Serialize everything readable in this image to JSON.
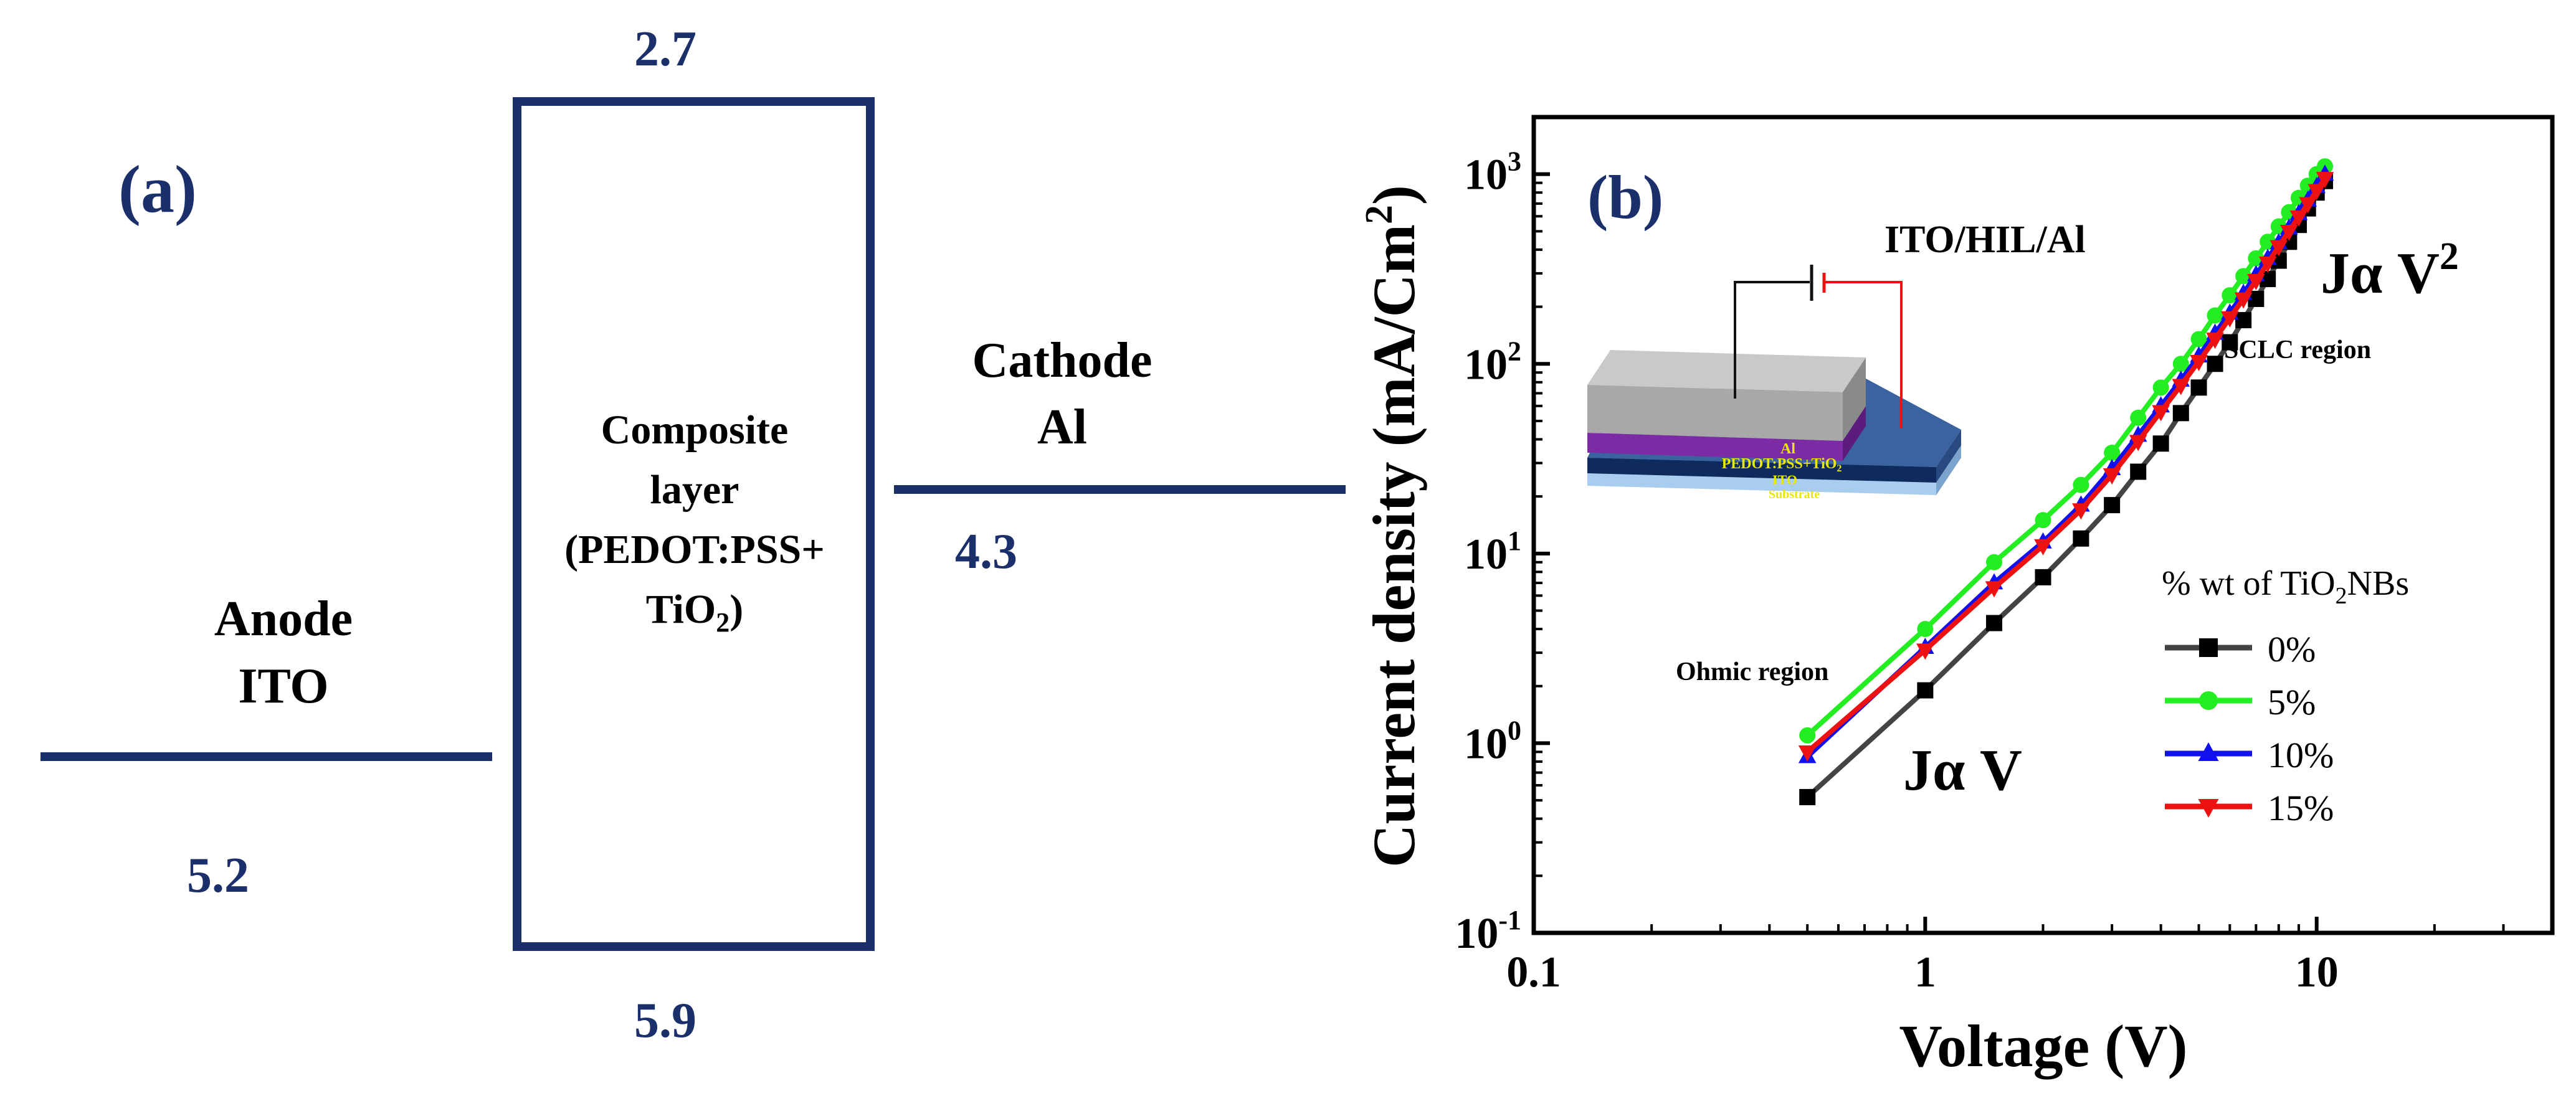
{
  "panel_a": {
    "label": "(a)",
    "anode": {
      "line1": "Anode",
      "line2": "ITO",
      "level": "5.2"
    },
    "composite": {
      "line1": "Composite",
      "line2": "layer",
      "line3": "(PEDOT:PSS+",
      "line4_main": "TiO",
      "line4_sub": "2",
      "line4_end": ")",
      "top_level": "2.7",
      "bottom_level": "5.9"
    },
    "cathode": {
      "line1": "Cathode",
      "line2": "Al",
      "level": "4.3"
    },
    "colors": {
      "level_color": "#1b2f6b"
    }
  },
  "chart_data": {
    "type": "line",
    "panel_label": "(b)",
    "xscale": "log",
    "yscale": "log",
    "xlabel": "Voltage (V)",
    "ylabel_main": "Current density (mA/Cm",
    "ylabel_sup": "2",
    "ylabel_end": ")",
    "xlim": [
      0.1,
      40
    ],
    "ylim": [
      0.1,
      2000
    ],
    "xticks": [
      {
        "value": 0.1,
        "label": "0.1"
      },
      {
        "value": 1,
        "label": "1"
      },
      {
        "value": 10,
        "label": "10"
      }
    ],
    "yticks": [
      {
        "value": 0.1,
        "base": "10",
        "exp": "-1"
      },
      {
        "value": 1,
        "base": "10",
        "exp": "0"
      },
      {
        "value": 10,
        "base": "10",
        "exp": "1"
      },
      {
        "value": 100,
        "base": "10",
        "exp": "2"
      },
      {
        "value": 1000,
        "base": "10",
        "exp": "3"
      }
    ],
    "x": [
      0.5,
      1.0,
      1.5,
      2.0,
      2.5,
      3.0,
      3.5,
      4.0,
      4.5,
      5.0,
      5.5,
      6.0,
      6.5,
      7.0,
      7.5,
      8.0,
      8.5,
      9.0,
      9.5,
      10.0,
      10.5
    ],
    "series": [
      {
        "name": "0%",
        "color": "#000000",
        "marker": "square",
        "values": [
          0.52,
          1.9,
          4.3,
          7.5,
          12,
          18,
          27,
          38,
          55,
          75,
          100,
          130,
          170,
          220,
          280,
          350,
          440,
          540,
          660,
          800,
          920
        ]
      },
      {
        "name": "5%",
        "color": "#22ee22",
        "marker": "circle",
        "values": [
          1.1,
          4.0,
          9.0,
          15,
          23,
          34,
          52,
          75,
          100,
          135,
          180,
          230,
          290,
          360,
          440,
          530,
          630,
          750,
          870,
          1000,
          1100
        ]
      },
      {
        "name": "10%",
        "color": "#1111ee",
        "marker": "triangle-up",
        "values": [
          0.85,
          3.2,
          7.0,
          11.5,
          18,
          28,
          42,
          60,
          82,
          110,
          145,
          185,
          235,
          295,
          360,
          435,
          520,
          620,
          730,
          860,
          1000
        ]
      },
      {
        "name": "15%",
        "color": "#ee1111",
        "marker": "triangle-down",
        "values": [
          0.9,
          3.1,
          6.6,
          11,
          17,
          26,
          39,
          56,
          77,
          103,
          135,
          175,
          220,
          275,
          340,
          415,
          500,
          595,
          700,
          820,
          950
        ]
      }
    ],
    "legend_title_main": "% wt of TiO",
    "legend_title_sub": "2",
    "legend_title_end": "NBs",
    "legend_position": "right",
    "annotations": {
      "ohmic_region": "Ohmic region",
      "sclc_region": "SCLC region",
      "j_alpha_v": "Jα V",
      "j_alpha_v2_main": "Jα V",
      "j_alpha_v2_sup": "2"
    },
    "inset": {
      "title": "ITO/HIL/Al",
      "layer_al": "Al",
      "layer_pedot": "PEDOT:PSS+TiO",
      "layer_pedot_sub": "2",
      "layer_ito": "ITO",
      "layer_substrate": "Substrate"
    }
  }
}
